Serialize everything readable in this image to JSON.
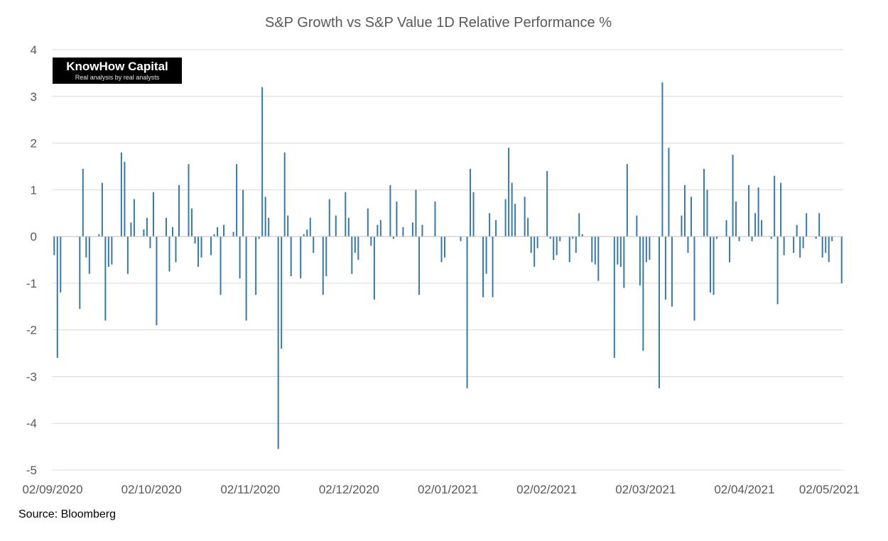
{
  "chart_data": {
    "type": "bar",
    "title": "S&P Growth vs S&P Value 1D Relative Performance %",
    "xlabel": "",
    "ylabel": "",
    "ylim": [
      -5,
      4
    ],
    "yticks": [
      4,
      3,
      2,
      1,
      0,
      -1,
      -2,
      -3,
      -4,
      -5
    ],
    "xticks": [
      "02/09/2020",
      "02/10/2020",
      "02/11/2020",
      "02/12/2020",
      "02/01/2021",
      "02/02/2021",
      "02/03/2021",
      "02/04/2021",
      "02/05/2021"
    ],
    "grid": true,
    "bar_color": "#3a7aa8",
    "series": [
      {
        "values": [
          -0.4,
          -2.6,
          -1.2,
          0,
          0,
          0,
          0,
          0,
          -1.55,
          1.45,
          -0.45,
          -0.8,
          0,
          0,
          0.05,
          1.15,
          -1.8,
          -0.65,
          -0.6,
          0,
          0,
          1.8,
          1.6,
          -0.8,
          0.3,
          0.8,
          0,
          0,
          0.15,
          0.4,
          -0.25,
          0.95,
          -1.9,
          0,
          0,
          0.4,
          -0.75,
          0.2,
          -0.55,
          1.1,
          0,
          0,
          1.55,
          0.6,
          -0.15,
          -0.65,
          -0.45,
          0,
          0,
          -0.4,
          0.05,
          0.2,
          -1.25,
          0.25,
          0,
          0,
          0.1,
          1.55,
          -0.9,
          1.0,
          -1.8,
          0,
          0,
          -1.25,
          -0.05,
          3.2,
          0.85,
          0.4,
          0,
          0,
          -4.55,
          -2.4,
          1.8,
          0.45,
          -0.85,
          0,
          0,
          -0.9,
          0.05,
          0.15,
          0.4,
          -0.35,
          0,
          0,
          -1.25,
          -0.85,
          0.8,
          0,
          0.45,
          0,
          0,
          0.95,
          0.4,
          -0.8,
          -0.35,
          -0.5,
          0,
          0,
          0.6,
          -0.2,
          -1.35,
          0.25,
          0.35,
          0,
          0,
          1.1,
          -0.05,
          0.75,
          0,
          0.2,
          0,
          0,
          0.3,
          1.0,
          -1.25,
          0.25,
          0,
          0,
          0,
          0.75,
          0,
          -0.55,
          -0.45,
          0,
          0,
          0,
          0,
          -0.1,
          0,
          -3.25,
          1.45,
          0.95,
          0,
          0,
          -1.3,
          -0.8,
          0.5,
          -1.3,
          0.35,
          0,
          0,
          0.8,
          1.9,
          1.15,
          0.7,
          0,
          0,
          0.85,
          0.4,
          -0.35,
          -0.65,
          -0.25,
          0,
          0,
          1.4,
          -0.05,
          -0.5,
          -0.4,
          -0.1,
          0,
          0,
          -0.55,
          -0.05,
          -0.35,
          0.5,
          0.05,
          0,
          0,
          -0.55,
          -0.6,
          -0.95,
          0,
          0,
          0,
          0,
          -2.6,
          -0.6,
          -0.65,
          -1.1,
          1.55,
          0,
          0,
          0.45,
          -1.05,
          -2.45,
          -0.55,
          -0.5,
          0,
          0,
          -3.25,
          3.3,
          -1.35,
          1.9,
          -1.5,
          0,
          0,
          0.45,
          1.1,
          -0.35,
          0.85,
          -1.8,
          0,
          0,
          1.45,
          1.0,
          -1.2,
          -1.25,
          -0.05,
          0,
          0,
          0.35,
          -0.55,
          1.75,
          0.75,
          -0.1,
          0,
          0,
          1.1,
          -0.1,
          0.5,
          1.05,
          0.35,
          0,
          0,
          -0.05,
          1.3,
          -1.45,
          1.15,
          -0.4,
          0,
          0,
          -0.35,
          0.25,
          -0.45,
          -0.25,
          0.5,
          0,
          0,
          -0.05,
          0.5,
          -0.45,
          -0.35,
          -0.55,
          -0.1,
          0,
          0,
          -1.0
        ]
      }
    ]
  },
  "logo": {
    "brand": "KnowHow Capital",
    "tagline": "Real analysis by real analysts"
  },
  "footer": {
    "source": "Source: Bloomberg"
  }
}
